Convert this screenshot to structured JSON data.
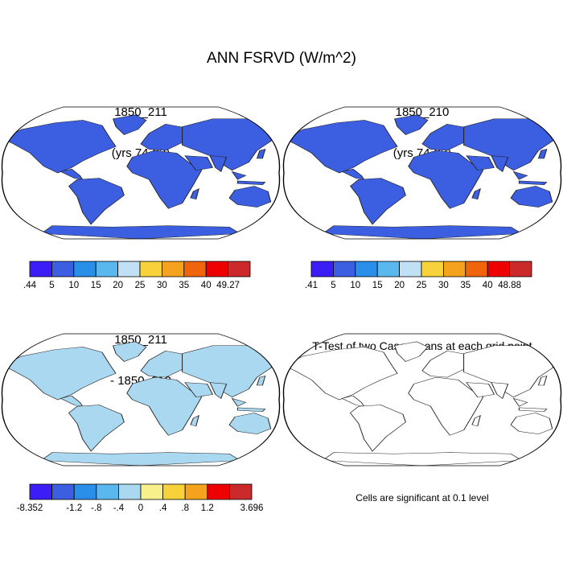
{
  "title": "ANN FSRVD (W/m^2)",
  "panels": [
    {
      "id": "p1",
      "title_line1": "1850_211",
      "title_line2": "(yrs 74-93)"
    },
    {
      "id": "p2",
      "title_line1": "1850_210",
      "title_line2": "(yrs 74-93)"
    },
    {
      "id": "p3",
      "title_line1": "1850_211",
      "title_line2": "- 1850_210"
    },
    {
      "id": "p4",
      "title_line1": "T-Test of two Case means at each grid point",
      "title_line2": ""
    }
  ],
  "colorbars": [
    {
      "id": "cb1",
      "labels": [
        ".44",
        "5",
        "10",
        "15",
        "20",
        "25",
        "30",
        "35",
        "40",
        "49.27"
      ],
      "colors": [
        "#3b1ef5",
        "#3c5ee0",
        "#2a8fe8",
        "#5ab8ee",
        "#bfe0f5",
        "#f7d23a",
        "#f5a31e",
        "#f0640c",
        "#ee0000",
        "#cc2a2a"
      ]
    },
    {
      "id": "cb2",
      "labels": [
        ".41",
        "5",
        "10",
        "15",
        "20",
        "25",
        "30",
        "35",
        "40",
        "48.88"
      ],
      "colors": [
        "#3b1ef5",
        "#3c5ee0",
        "#2a8fe8",
        "#5ab8ee",
        "#bfe0f5",
        "#f7d23a",
        "#f5a31e",
        "#f0640c",
        "#ee0000",
        "#cc2a2a"
      ]
    },
    {
      "id": "cb3",
      "labels": [
        "-8.352",
        "-1.2",
        "-.8",
        "-.4",
        "0",
        ".4",
        ".8",
        "1.2",
        "3.696"
      ],
      "label_slots": [
        0,
        2,
        3,
        4,
        5,
        6,
        7,
        8,
        10
      ],
      "colors": [
        "#3b1ef5",
        "#3c5ee0",
        "#2a8fe8",
        "#5ab8ee",
        "#a9d8f0",
        "#f8f08a",
        "#f7d23a",
        "#f5a31e",
        "#ee0000",
        "#cc2a2a"
      ]
    }
  ],
  "note": "Cells are significant at 0.1 level",
  "chart_data": [
    {
      "type": "heatmap",
      "title": "1850_211 (yrs 74-93)",
      "projection": "Robinson",
      "vmin": 0.44,
      "vmax": 49.27,
      "levels": [
        5,
        10,
        15,
        20,
        25,
        30,
        35,
        40
      ]
    },
    {
      "type": "heatmap",
      "title": "1850_210 (yrs 74-93)",
      "projection": "Robinson",
      "vmin": 0.41,
      "vmax": 48.88,
      "levels": [
        5,
        10,
        15,
        20,
        25,
        30,
        35,
        40
      ]
    },
    {
      "type": "heatmap",
      "title": "1850_211 - 1850_210",
      "projection": "Robinson",
      "vmin": -8.352,
      "vmax": 3.696,
      "levels": [
        -1.2,
        -0.8,
        -0.4,
        0,
        0.4,
        0.8,
        1.2
      ]
    },
    {
      "type": "heatmap",
      "title": "T-Test of two Case means at each grid point",
      "projection": "Robinson",
      "significance_level": 0.1,
      "colors": {
        "significant": "#ee0000",
        "land": "#ffffff"
      }
    }
  ]
}
